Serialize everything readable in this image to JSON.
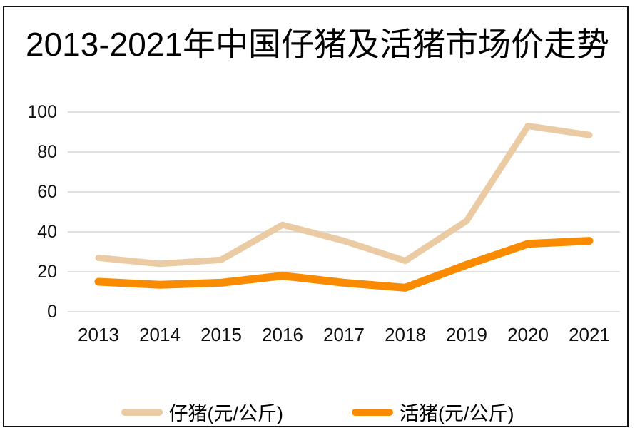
{
  "window": {
    "background": "#ffffff",
    "border_color": "#111111"
  },
  "chart_data": {
    "type": "line",
    "title": "2013-2021年中国仔猪及活猪市场价走势",
    "categories": [
      "2013",
      "2014",
      "2015",
      "2016",
      "2017",
      "2018",
      "2019",
      "2020",
      "2021"
    ],
    "series": [
      {
        "name": "仔猪(元/公斤)",
        "color": "#EBCBA3",
        "stroke_width": 9,
        "values": [
          27,
          24,
          26,
          43.5,
          35.5,
          25.5,
          45.5,
          93,
          88.5
        ]
      },
      {
        "name": "活猪(元/公斤)",
        "color": "#FA8B00",
        "stroke_width": 11,
        "values": [
          15,
          13.5,
          14.5,
          18,
          14.5,
          12,
          23.5,
          34,
          35.5
        ]
      }
    ],
    "ylim": [
      0,
      100
    ],
    "yticks": [
      0,
      20,
      40,
      60,
      80,
      100
    ],
    "xlabel": "",
    "ylabel": "",
    "grid": true,
    "gridline_color": "#D6D6D6",
    "axis_text_color": "#0f0f0f",
    "legend_position": "bottom"
  }
}
